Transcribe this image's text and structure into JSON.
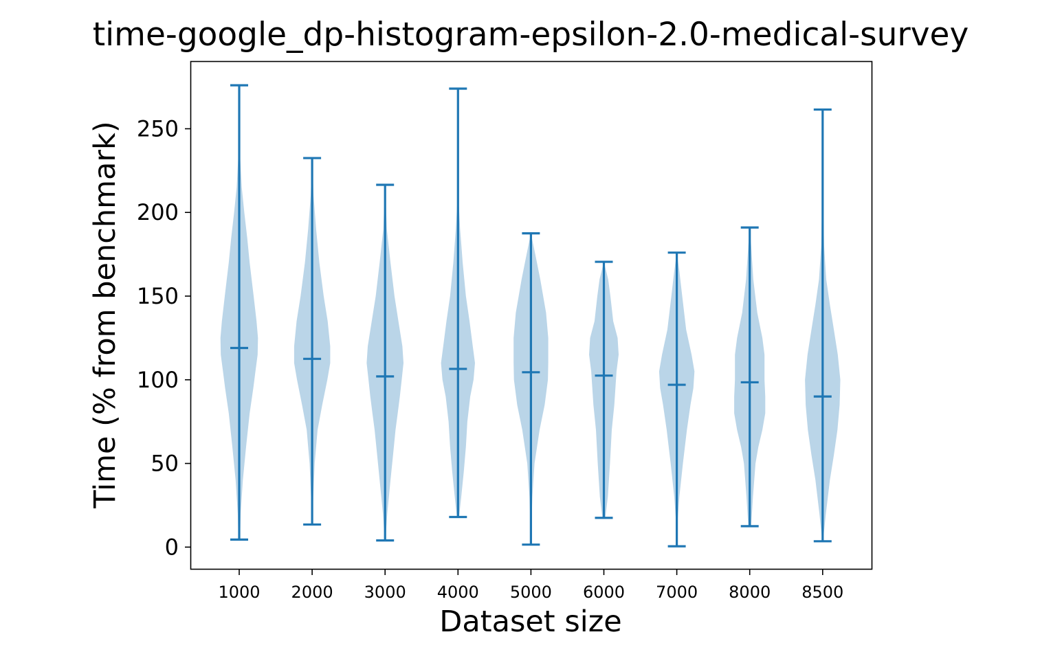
{
  "chart_data": {
    "type": "violin",
    "title": "time-google_dp-histogram-epsilon-2.0-medical-survey",
    "xlabel": "Dataset size",
    "ylabel": "Time (% from benchmark)",
    "ylim": [
      -13,
      290
    ],
    "yticks": [
      0,
      50,
      100,
      150,
      200,
      250
    ],
    "grid": false,
    "legend": "none",
    "colors": {
      "body": "#bad5e8",
      "line": "#1f77b4"
    },
    "categories": [
      "1000",
      "2000",
      "3000",
      "4000",
      "5000",
      "6000",
      "7000",
      "8000",
      "8500"
    ],
    "stats": [
      {
        "min": 4.5,
        "median": 119,
        "max": 276
      },
      {
        "min": 13.5,
        "median": 112.5,
        "max": 232.5
      },
      {
        "min": 4,
        "median": 102,
        "max": 216.5
      },
      {
        "min": 18,
        "median": 106.5,
        "max": 274
      },
      {
        "min": 1.5,
        "median": 104.5,
        "max": 187.5
      },
      {
        "min": 17.5,
        "median": 102.5,
        "max": 170.5
      },
      {
        "min": 0.5,
        "median": 97,
        "max": 176
      },
      {
        "min": 12.5,
        "median": 98.5,
        "max": 191
      },
      {
        "min": 3.5,
        "median": 90,
        "max": 261.5
      }
    ],
    "density": [
      [
        [
          5,
          0.1
        ],
        [
          20,
          0.2
        ],
        [
          40,
          0.5
        ],
        [
          60,
          0.95
        ],
        [
          80,
          1.45
        ],
        [
          95,
          1.95
        ],
        [
          105,
          2.25
        ],
        [
          115,
          2.55
        ],
        [
          125,
          2.6
        ],
        [
          135,
          2.4
        ],
        [
          150,
          2.0
        ],
        [
          170,
          1.45
        ],
        [
          185,
          1.1
        ],
        [
          200,
          0.7
        ],
        [
          215,
          0.35
        ],
        [
          235,
          0.1
        ],
        [
          276,
          0.0
        ]
      ],
      [
        [
          13.5,
          0.05
        ],
        [
          30,
          0.15
        ],
        [
          50,
          0.35
        ],
        [
          70,
          0.75
        ],
        [
          85,
          1.4
        ],
        [
          100,
          2.1
        ],
        [
          110,
          2.5
        ],
        [
          120,
          2.5
        ],
        [
          135,
          2.15
        ],
        [
          150,
          1.6
        ],
        [
          170,
          1.0
        ],
        [
          190,
          0.55
        ],
        [
          210,
          0.2
        ],
        [
          232.5,
          0.0
        ]
      ],
      [
        [
          4,
          0.05
        ],
        [
          20,
          0.3
        ],
        [
          40,
          0.75
        ],
        [
          55,
          1.1
        ],
        [
          70,
          1.45
        ],
        [
          80,
          1.75
        ],
        [
          90,
          2.05
        ],
        [
          100,
          2.3
        ],
        [
          110,
          2.55
        ],
        [
          120,
          2.4
        ],
        [
          135,
          1.85
        ],
        [
          150,
          1.3
        ],
        [
          170,
          0.75
        ],
        [
          190,
          0.25
        ],
        [
          216.5,
          0.0
        ]
      ],
      [
        [
          18,
          0.15
        ],
        [
          30,
          0.45
        ],
        [
          45,
          0.8
        ],
        [
          60,
          1.1
        ],
        [
          75,
          1.3
        ],
        [
          90,
          1.7
        ],
        [
          100,
          2.15
        ],
        [
          110,
          2.35
        ],
        [
          120,
          2.05
        ],
        [
          135,
          1.6
        ],
        [
          150,
          1.1
        ],
        [
          170,
          0.65
        ],
        [
          190,
          0.3
        ],
        [
          210,
          0.05
        ],
        [
          274,
          0.0
        ]
      ],
      [
        [
          1.5,
          0.02
        ],
        [
          10,
          0.05
        ],
        [
          30,
          0.2
        ],
        [
          50,
          0.5
        ],
        [
          70,
          1.2
        ],
        [
          85,
          1.9
        ],
        [
          100,
          2.35
        ],
        [
          110,
          2.4
        ],
        [
          125,
          2.4
        ],
        [
          140,
          2.1
        ],
        [
          160,
          1.3
        ],
        [
          175,
          0.6
        ],
        [
          187.5,
          0.0
        ]
      ],
      [
        [
          17.5,
          0.2
        ],
        [
          30,
          0.55
        ],
        [
          50,
          0.85
        ],
        [
          70,
          1.1
        ],
        [
          85,
          1.45
        ],
        [
          95,
          1.6
        ],
        [
          105,
          1.75
        ],
        [
          115,
          2.05
        ],
        [
          125,
          1.9
        ],
        [
          135,
          1.3
        ],
        [
          150,
          0.9
        ],
        [
          160,
          0.6
        ],
        [
          170.5,
          0.0
        ]
      ],
      [
        [
          0.5,
          0.02
        ],
        [
          15,
          0.1
        ],
        [
          30,
          0.35
        ],
        [
          50,
          0.85
        ],
        [
          70,
          1.4
        ],
        [
          85,
          1.9
        ],
        [
          95,
          2.3
        ],
        [
          105,
          2.45
        ],
        [
          115,
          2.05
        ],
        [
          130,
          1.3
        ],
        [
          150,
          0.75
        ],
        [
          165,
          0.35
        ],
        [
          176,
          0.0
        ]
      ],
      [
        [
          12.5,
          0.2
        ],
        [
          30,
          0.45
        ],
        [
          50,
          0.8
        ],
        [
          60,
          1.2
        ],
        [
          70,
          1.75
        ],
        [
          80,
          2.15
        ],
        [
          90,
          2.15
        ],
        [
          100,
          2.05
        ],
        [
          115,
          2.05
        ],
        [
          125,
          1.75
        ],
        [
          140,
          1.05
        ],
        [
          160,
          0.5
        ],
        [
          180,
          0.2
        ],
        [
          191,
          0.0
        ]
      ],
      [
        [
          3.5,
          0.05
        ],
        [
          20,
          0.45
        ],
        [
          40,
          1.0
        ],
        [
          55,
          1.55
        ],
        [
          70,
          2.05
        ],
        [
          85,
          2.35
        ],
        [
          100,
          2.45
        ],
        [
          115,
          2.1
        ],
        [
          130,
          1.55
        ],
        [
          145,
          1.0
        ],
        [
          160,
          0.5
        ],
        [
          180,
          0.2
        ],
        [
          200,
          0.1
        ],
        [
          261.5,
          0.0
        ]
      ]
    ]
  }
}
